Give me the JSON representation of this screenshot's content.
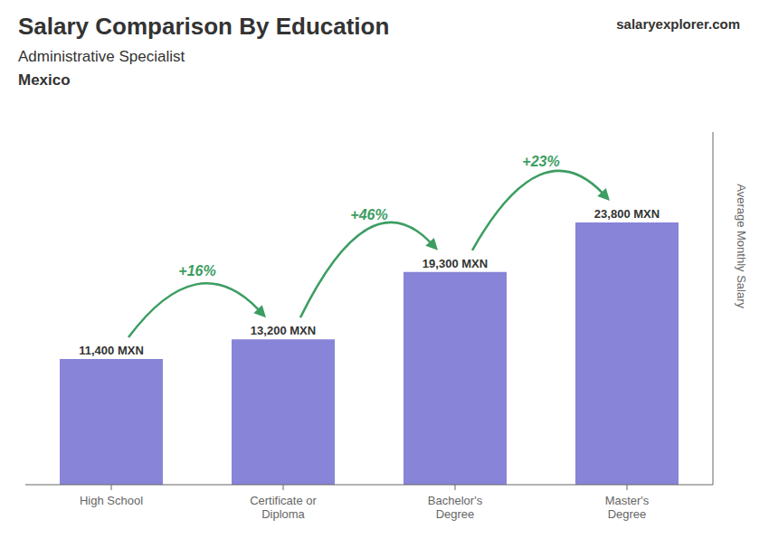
{
  "chart_data": {
    "type": "bar",
    "title": "Salary Comparison By Education",
    "subtitle": "Administrative Specialist",
    "annotations": [
      {
        "text": "Mexico"
      },
      {
        "text": "salaryexplorer.com"
      },
      {
        "text": "+16%",
        "from": "High School",
        "to": "Certificate or\nDiploma"
      },
      {
        "text": "+46%",
        "from": "Certificate or\nDiploma",
        "to": "Bachelor's\nDegree"
      },
      {
        "text": "+23%",
        "from": "Bachelor's\nDegree",
        "to": "Master's\nDegree"
      }
    ],
    "ylabel": "Average Monthly Salary",
    "categories": [
      "High School",
      "Certificate or\nDiploma",
      "Bachelor's\nDegree",
      "Master's\nDegree"
    ],
    "values": [
      11400,
      13200,
      19300,
      23800
    ],
    "value_labels": [
      "11,400 MXN",
      "13,200 MXN",
      "19,300 MXN",
      "23,800 MXN"
    ],
    "data_labels": true,
    "ylim": [
      0,
      32000
    ],
    "tick_labels": "x",
    "grid": false
  }
}
